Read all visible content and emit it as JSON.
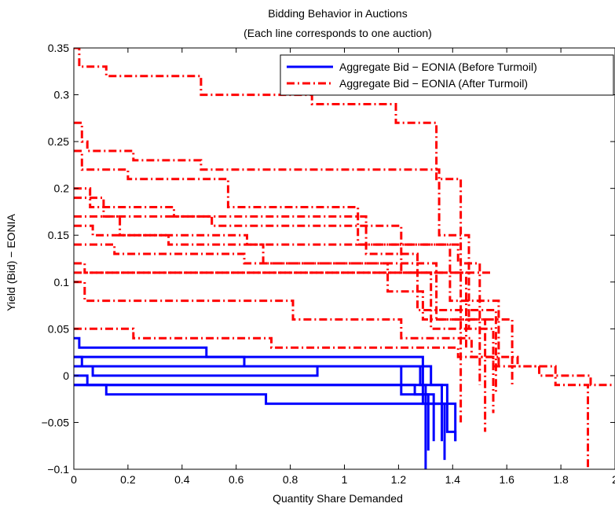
{
  "chart_data": {
    "type": "line",
    "title": "Bidding Behavior in Auctions",
    "subtitle": "(Each line corresponds to one auction)",
    "xlabel": "Quantity Share Demanded",
    "ylabel": "Yield (Bid) − EONIA",
    "xlim": [
      0,
      2
    ],
    "ylim": [
      -0.1,
      0.35
    ],
    "xticks": [
      "0",
      "0.2",
      "0.4",
      "0.6",
      "0.8",
      "1",
      "1.2",
      "1.4",
      "1.6",
      "1.8",
      "2"
    ],
    "yticks": [
      "−0.1",
      "−0.05",
      "0",
      "0.05",
      "0.1",
      "0.15",
      "0.2",
      "0.25",
      "0.3",
      "0.35"
    ],
    "grid": false,
    "legend_position": "top-right",
    "legend": [
      {
        "label": "Aggregate Bid − EONIA (Before Turmoil)",
        "color": "#0000ff",
        "style": "solid"
      },
      {
        "label": "Aggregate Bid − EONIA (After Turmoil)",
        "color": "#ff0000",
        "style": "dash-dot"
      }
    ],
    "series": [
      {
        "group": "before",
        "x": [
          0,
          0.02,
          0.02,
          0.14,
          0.14,
          0.49,
          0.49,
          1.29,
          1.29,
          1.36,
          1.36
        ],
        "y": [
          0.04,
          0.04,
          0.03,
          0.03,
          0.03,
          0.03,
          0.02,
          0.02,
          -0.01,
          -0.01,
          -0.07
        ]
      },
      {
        "group": "before",
        "x": [
          0,
          0.01,
          0.01,
          0.63,
          0.63,
          1.21,
          1.21,
          1.33,
          1.33
        ],
        "y": [
          0.02,
          0.02,
          0.02,
          0.02,
          0.01,
          0.01,
          -0.02,
          -0.02,
          -0.07
        ]
      },
      {
        "group": "before",
        "x": [
          0,
          0.03,
          0.03,
          0.41,
          0.41,
          1.28,
          1.28,
          1.3,
          1.3
        ],
        "y": [
          0.02,
          0.02,
          0.01,
          0.01,
          0.01,
          0.01,
          -0.01,
          -0.01,
          -0.1
        ]
      },
      {
        "group": "before",
        "x": [
          0,
          0.07,
          0.07,
          0.9,
          0.9,
          1.32,
          1.32,
          1.38,
          1.38,
          1.41,
          1.41
        ],
        "y": [
          0.01,
          0.01,
          0.0,
          0.0,
          0.01,
          0.01,
          -0.01,
          -0.01,
          -0.06,
          -0.06,
          -0.07
        ]
      },
      {
        "group": "before",
        "x": [
          0,
          0.05,
          0.05,
          0.64,
          0.64,
          1.26,
          1.26,
          1.31,
          1.31
        ],
        "y": [
          0.0,
          0.0,
          -0.01,
          -0.01,
          -0.01,
          -0.01,
          -0.02,
          -0.02,
          -0.08
        ]
      },
      {
        "group": "before",
        "x": [
          0,
          0.12,
          0.12,
          0.71,
          0.71,
          1.41,
          1.41
        ],
        "y": [
          -0.01,
          -0.01,
          -0.02,
          -0.02,
          -0.03,
          -0.03,
          -0.07
        ]
      },
      {
        "group": "before",
        "x": [
          0,
          0.03,
          0.03,
          0.92,
          0.92,
          1.29,
          1.29,
          1.37,
          1.37
        ],
        "y": [
          -0.01,
          -0.01,
          -0.01,
          -0.01,
          -0.01,
          -0.01,
          -0.03,
          -0.03,
          -0.09
        ]
      },
      {
        "group": "after",
        "x": [
          0,
          0.02,
          0.02,
          0.12,
          0.12,
          0.47,
          0.47,
          0.88,
          0.88,
          1.19,
          1.19,
          1.34,
          1.34,
          1.43,
          1.43
        ],
        "y": [
          0.35,
          0.35,
          0.33,
          0.33,
          0.32,
          0.32,
          0.3,
          0.3,
          0.29,
          0.29,
          0.27,
          0.27,
          0.21,
          0.21,
          -0.05
        ]
      },
      {
        "group": "after",
        "x": [
          0,
          0.03,
          0.03,
          0.05,
          0.05,
          0.22,
          0.22,
          0.47,
          0.47,
          1.35,
          1.35,
          1.46,
          1.46
        ],
        "y": [
          0.27,
          0.27,
          0.25,
          0.25,
          0.24,
          0.24,
          0.23,
          0.23,
          0.22,
          0.22,
          0.15,
          0.15,
          0.05
        ]
      },
      {
        "group": "after",
        "x": [
          0,
          0.03,
          0.03,
          0.2,
          0.2,
          0.57,
          0.57,
          1.05,
          1.05,
          1.42,
          1.42,
          1.5,
          1.5
        ],
        "y": [
          0.24,
          0.24,
          0.22,
          0.22,
          0.21,
          0.21,
          0.18,
          0.18,
          0.14,
          0.14,
          0.12,
          0.12,
          -0.01
        ]
      },
      {
        "group": "after",
        "x": [
          0,
          0.06,
          0.06,
          0.37,
          0.37,
          1.08,
          1.08,
          1.27,
          1.27,
          1.56,
          1.56
        ],
        "y": [
          0.2,
          0.2,
          0.18,
          0.18,
          0.17,
          0.17,
          0.13,
          0.13,
          0.07,
          0.07,
          -0.02
        ]
      },
      {
        "group": "after",
        "x": [
          0,
          0.11,
          0.11,
          0.51,
          0.51,
          1.21,
          1.21,
          1.45,
          1.45
        ],
        "y": [
          0.19,
          0.19,
          0.17,
          0.17,
          0.16,
          0.16,
          0.11,
          0.11,
          0.03
        ]
      },
      {
        "group": "after",
        "x": [
          0,
          0.17,
          0.17,
          0.64,
          0.64,
          1.39,
          1.39,
          1.57,
          1.57
        ],
        "y": [
          0.17,
          0.17,
          0.15,
          0.15,
          0.14,
          0.14,
          0.08,
          0.08,
          0.01
        ]
      },
      {
        "group": "after",
        "x": [
          0,
          0.07,
          0.07,
          0.35,
          0.35,
          0.7,
          0.7,
          1.16,
          1.16,
          1.29,
          1.29,
          1.52,
          1.52
        ],
        "y": [
          0.16,
          0.16,
          0.15,
          0.15,
          0.14,
          0.14,
          0.12,
          0.12,
          0.09,
          0.09,
          0.06,
          0.06,
          -0.06
        ]
      },
      {
        "group": "after",
        "x": [
          0,
          0.15,
          0.15,
          0.63,
          0.63,
          1.34,
          1.34,
          1.62,
          1.62
        ],
        "y": [
          0.14,
          0.14,
          0.13,
          0.13,
          0.12,
          0.12,
          0.06,
          0.06,
          -0.01
        ]
      },
      {
        "group": "after",
        "x": [
          0,
          0.04,
          0.04,
          0.88,
          0.88,
          1.32,
          1.32,
          1.55,
          1.55
        ],
        "y": [
          0.12,
          0.12,
          0.11,
          0.11,
          0.11,
          0.11,
          0.05,
          0.05,
          -0.04
        ]
      },
      {
        "group": "after",
        "x": [
          0,
          1.08,
          1.08,
          1.55
        ],
        "y": [
          0.11,
          0.11,
          0.11,
          0.11
        ]
      },
      {
        "group": "after",
        "x": [
          0,
          0.04,
          0.04,
          0.19,
          0.19,
          0.81,
          0.81,
          1.21,
          1.21,
          1.47,
          1.47,
          1.55,
          1.55,
          1.78,
          1.78,
          1.9,
          1.9
        ],
        "y": [
          0.1,
          0.1,
          0.08,
          0.08,
          0.08,
          0.08,
          0.06,
          0.06,
          0.04,
          0.04,
          0.02,
          0.02,
          0.01,
          0.01,
          -0.01,
          -0.01,
          -0.1
        ]
      },
      {
        "group": "after",
        "x": [
          0,
          0.07,
          0.07,
          0.22,
          0.22,
          0.73,
          0.73,
          1.42,
          1.42,
          1.64,
          1.64,
          1.72,
          1.72,
          1.91,
          1.91,
          2.0
        ],
        "y": [
          0.05,
          0.05,
          0.05,
          0.05,
          0.04,
          0.04,
          0.03,
          0.03,
          0.02,
          0.02,
          0.01,
          0.01,
          0.0,
          0.0,
          -0.01,
          -0.01
        ]
      }
    ]
  }
}
